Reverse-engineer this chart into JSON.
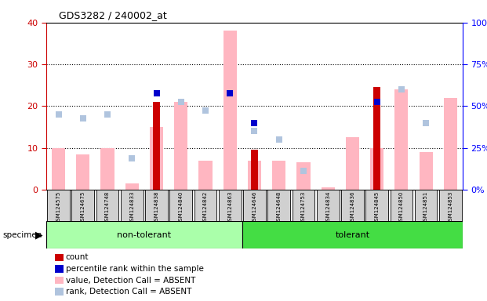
{
  "title": "GDS3282 / 240002_at",
  "samples": [
    "GSM124575",
    "GSM124675",
    "GSM124748",
    "GSM124833",
    "GSM124838",
    "GSM124840",
    "GSM124842",
    "GSM124863",
    "GSM124646",
    "GSM124648",
    "GSM124753",
    "GSM124834",
    "GSM124836",
    "GSM124845",
    "GSM124850",
    "GSM124851",
    "GSM124853"
  ],
  "group_labels": [
    "non-tolerant",
    "tolerant"
  ],
  "group_split": 8,
  "ylim_left": [
    0,
    40
  ],
  "ylim_right": [
    0,
    100
  ],
  "yticks_left": [
    0,
    10,
    20,
    30,
    40
  ],
  "count_values": [
    0,
    0,
    0,
    0,
    21,
    0,
    0,
    0,
    9.5,
    0,
    0,
    0,
    0,
    24.5,
    0,
    0,
    0
  ],
  "percentile_values": [
    null,
    null,
    null,
    null,
    23,
    null,
    null,
    23,
    16,
    null,
    null,
    null,
    null,
    21,
    null,
    null,
    null
  ],
  "value_absent": [
    10,
    8.5,
    10,
    1.5,
    15,
    21,
    7,
    38,
    7,
    7,
    6.5,
    0.5,
    12.5,
    10,
    24,
    9,
    22
  ],
  "rank_absent": [
    18,
    17,
    18,
    7.5,
    null,
    21,
    19,
    null,
    14,
    12,
    4.5,
    null,
    null,
    null,
    24,
    16,
    null
  ],
  "count_color": "#cc0000",
  "percentile_color": "#0000cc",
  "value_absent_color": "#ffb6c1",
  "rank_absent_color": "#b0c4de",
  "plot_bg": "#ffffff",
  "sample_box_color": "#d0d0d0",
  "nontol_color": "#aaffaa",
  "tol_color": "#44dd44",
  "legend_items": [
    {
      "label": "count",
      "color": "#cc0000"
    },
    {
      "label": "percentile rank within the sample",
      "color": "#0000cc"
    },
    {
      "label": "value, Detection Call = ABSENT",
      "color": "#ffb6c1"
    },
    {
      "label": "rank, Detection Call = ABSENT",
      "color": "#b0c4de"
    }
  ]
}
